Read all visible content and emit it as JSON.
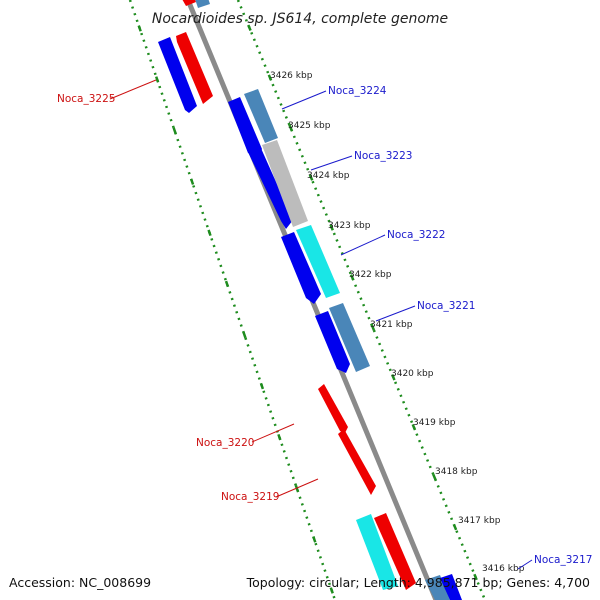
{
  "title": "Nocardioides sp. JS614, complete genome",
  "footer": {
    "accession": "Accession: NC_008699",
    "summary": "Topology: circular; Length: 4,985,871 bp; Genes: 4,700"
  },
  "colors": {
    "forward_gene": "#0000ee",
    "reverse_gene": "#ee0000",
    "steel_gene": "#4a86b8",
    "cyan_gene": "#19e6e6",
    "grey_gene": "#bcbcbc",
    "backbone": "#8a8a8a",
    "dotted_guide": "#1e8c1e",
    "label_forward": "#1a1acc",
    "label_reverse": "#cc1111"
  },
  "ticks": [
    {
      "label": "3426 kbp"
    },
    {
      "label": "3425 kbp"
    },
    {
      "label": "3424 kbp"
    },
    {
      "label": "3423 kbp"
    },
    {
      "label": "3422 kbp"
    },
    {
      "label": "3421 kbp"
    },
    {
      "label": "3420 kbp"
    },
    {
      "label": "3419 kbp"
    },
    {
      "label": "3418 kbp"
    },
    {
      "label": "3417 kbp"
    },
    {
      "label": "3416 kbp"
    }
  ],
  "gene_labels": [
    {
      "name": "Noca_3225",
      "strand": "reverse"
    },
    {
      "name": "Noca_3224",
      "strand": "forward"
    },
    {
      "name": "Noca_3223",
      "strand": "forward"
    },
    {
      "name": "Noca_3222",
      "strand": "forward"
    },
    {
      "name": "Noca_3221",
      "strand": "forward"
    },
    {
      "name": "Noca_3220",
      "strand": "reverse"
    },
    {
      "name": "Noca_3219",
      "strand": "reverse"
    },
    {
      "name": "Noca_3217",
      "strand": "forward"
    }
  ]
}
